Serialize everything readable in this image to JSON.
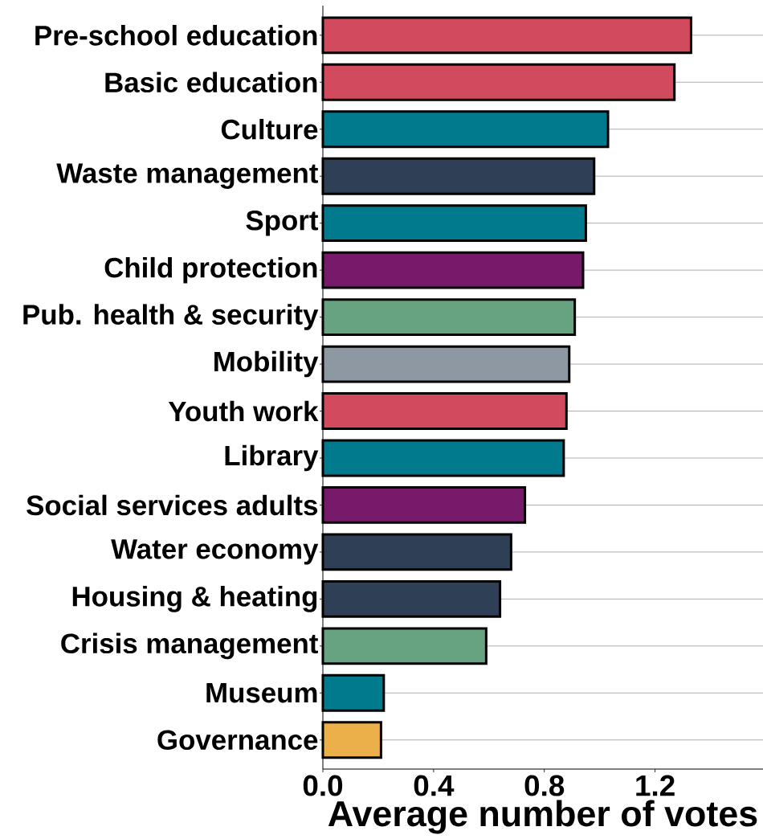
{
  "chart_data": {
    "type": "bar",
    "orientation": "horizontal",
    "xlabel": "Average number of votes",
    "categories": [
      "Pre-school education",
      "Basic education",
      "Culture",
      "Waste management",
      "Sport",
      "Child protection",
      "Pub. health &  security",
      "Mobility",
      "Youth work",
      "Library",
      "Social services adults",
      "Water economy",
      "Housing & heating",
      "Crisis management",
      "Museum",
      "Governance"
    ],
    "values": [
      1.33,
      1.27,
      1.03,
      0.98,
      0.95,
      0.94,
      0.91,
      0.89,
      0.88,
      0.87,
      0.73,
      0.68,
      0.64,
      0.59,
      0.22,
      0.21
    ],
    "colors": [
      "#d24a5e",
      "#d24a5e",
      "#007a8c",
      "#2f3f56",
      "#007a8c",
      "#781a6a",
      "#67a381",
      "#8e98a3",
      "#d24a5e",
      "#007a8c",
      "#781a6a",
      "#2f3f56",
      "#2f3f56",
      "#67a381",
      "#007a8c",
      "#ecb04b"
    ],
    "xlim": [
      0,
      1.59
    ],
    "xticks": [
      {
        "value": 0,
        "label": "0.0"
      },
      0.4,
      0.8,
      1.2
    ],
    "grid": "y"
  }
}
